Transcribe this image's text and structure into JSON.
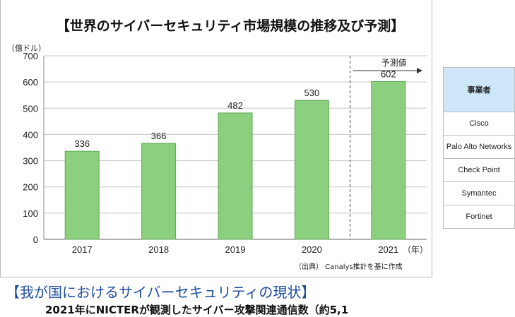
{
  "chart_data": {
    "type": "bar",
    "title": "【世界のサイバーセキュリティ市場規模の推移及び予測】",
    "ylabel": "（億ドル）",
    "xlabel": "",
    "x_unit_label": "（年）",
    "categories": [
      "2017",
      "2018",
      "2019",
      "2020",
      "2021"
    ],
    "values": [
      336,
      366,
      482,
      530,
      602
    ],
    "ylim": [
      0,
      700
    ],
    "yticks": [
      0,
      100,
      200,
      300,
      400,
      500,
      600,
      700
    ],
    "grid": true,
    "forecast_label": "予測値",
    "forecast_start_category": "2021",
    "bar_color": "#8ccf7e",
    "bar_border_color": "#5fa85a",
    "source_note": "（出典） Canalys推計を基に作成"
  },
  "vendor_table": {
    "header": "事業者",
    "rows": [
      "Cisco",
      "Palo Alto Networks",
      "Check Point",
      "Symantec",
      "Fortinet"
    ]
  },
  "section": {
    "heading": "【我が国におけるサイバーセキュリティの現状】",
    "body_partial": "2021年にNICTERが観測したサイバー攻撃関連通信数（約5,1"
  }
}
